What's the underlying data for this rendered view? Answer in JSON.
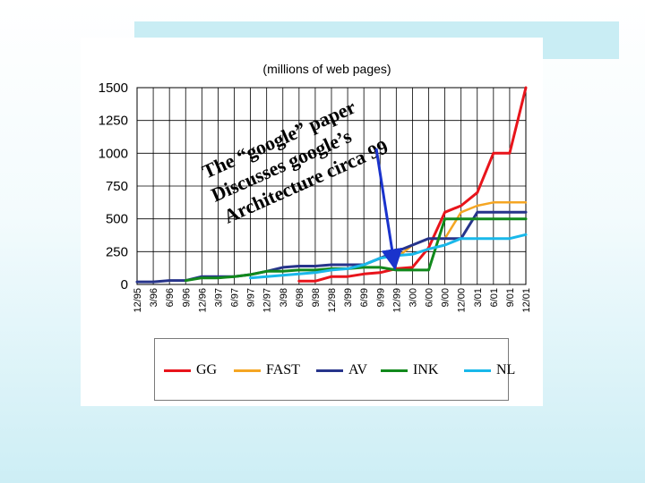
{
  "chart_data": {
    "type": "line",
    "subtitle": "(millions of web pages)",
    "ylim": [
      0,
      1500
    ],
    "y_ticks": [
      "1500",
      "1250",
      "1000",
      "750",
      "500",
      "250",
      "0"
    ],
    "categories": [
      "12/95",
      "3/96",
      "6/96",
      "9/96",
      "12/96",
      "3/97",
      "6/97",
      "9/97",
      "12/97",
      "3/98",
      "6/98",
      "9/98",
      "12/98",
      "3/99",
      "6/99",
      "9/99",
      "12/99",
      "3/00",
      "6/00",
      "9/00",
      "12/00",
      "3/01",
      "6/01",
      "9/01",
      "12/01"
    ],
    "grid": true,
    "legend_position": "bottom",
    "series": [
      {
        "name": "GG",
        "color": "#e8141b",
        "width": 3,
        "values": [
          null,
          null,
          null,
          null,
          null,
          null,
          null,
          null,
          null,
          null,
          25,
          25,
          60,
          60,
          80,
          90,
          120,
          130,
          280,
          550,
          600,
          700,
          1000,
          1000,
          1500
        ]
      },
      {
        "name": "FAST",
        "color": "#f5a623",
        "width": 2.5,
        "values": [
          null,
          null,
          null,
          null,
          null,
          null,
          null,
          null,
          null,
          null,
          null,
          null,
          null,
          null,
          null,
          null,
          200,
          300,
          350,
          350,
          550,
          600,
          625,
          625,
          625
        ]
      },
      {
        "name": "AV",
        "color": "#27348b",
        "width": 3,
        "values": [
          20,
          20,
          30,
          30,
          60,
          60,
          60,
          75,
          100,
          130,
          140,
          140,
          150,
          150,
          150,
          200,
          250,
          300,
          350,
          350,
          350,
          550,
          550,
          550,
          550
        ]
      },
      {
        "name": "INK",
        "color": "#11891c",
        "width": 3,
        "values": [
          null,
          null,
          null,
          30,
          50,
          50,
          60,
          75,
          100,
          100,
          110,
          110,
          120,
          120,
          130,
          130,
          110,
          110,
          110,
          500,
          500,
          500,
          500,
          500,
          500
        ]
      },
      {
        "name": "NL",
        "color": "#19b8ea",
        "width": 3,
        "values": [
          null,
          null,
          null,
          null,
          null,
          null,
          null,
          50,
          60,
          70,
          80,
          90,
          110,
          120,
          150,
          200,
          220,
          230,
          270,
          300,
          350,
          350,
          350,
          350,
          380
        ]
      }
    ],
    "annotation": {
      "lines": [
        "The “google” paper",
        "Discusses google’s",
        "Architecture circa 99"
      ],
      "arrow_color": "#1a33cc",
      "points_to": {
        "x": "12/99",
        "y": 120
      }
    }
  }
}
